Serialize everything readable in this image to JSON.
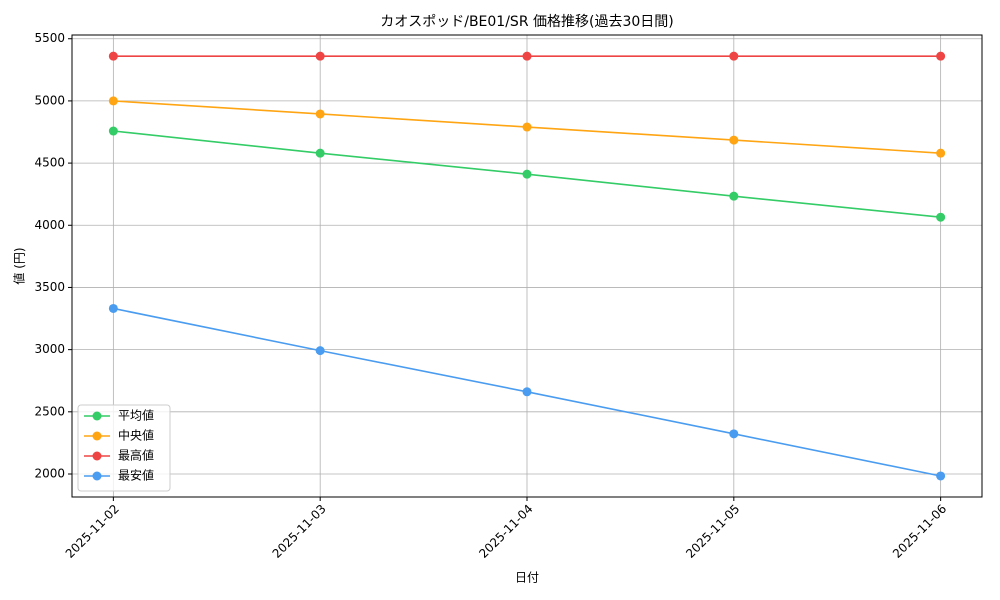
{
  "chart_data": {
    "type": "line",
    "title": "カオスポッド/BE01/SR 価格推移(過去30日間)",
    "x_label": "日付",
    "y_label": "値 (円)",
    "categories": [
      "2025-11-02",
      "2025-11-03",
      "2025-11-04",
      "2025-11-05",
      "2025-11-06"
    ],
    "series": [
      {
        "name": "平均値",
        "color": "#33cc66",
        "values": [
          4758,
          4580,
          4411,
          4234,
          4065
        ]
      },
      {
        "name": "中央値",
        "color": "#ffa514",
        "values": [
          5000,
          4895,
          4790,
          4685,
          4580
        ]
      },
      {
        "name": "最高値",
        "color": "#ef4444",
        "values": [
          5360,
          5360,
          5360,
          5360,
          5360
        ]
      },
      {
        "name": "最安値",
        "color": "#4a9cf0",
        "values": [
          3331,
          2992,
          2661,
          2323,
          1984
        ]
      }
    ],
    "ylim": [
      1815,
      5530
    ],
    "yticks": [
      2000,
      2500,
      3000,
      3500,
      4000,
      4500,
      5000,
      5500
    ],
    "grid": true,
    "legend": "lower left"
  }
}
